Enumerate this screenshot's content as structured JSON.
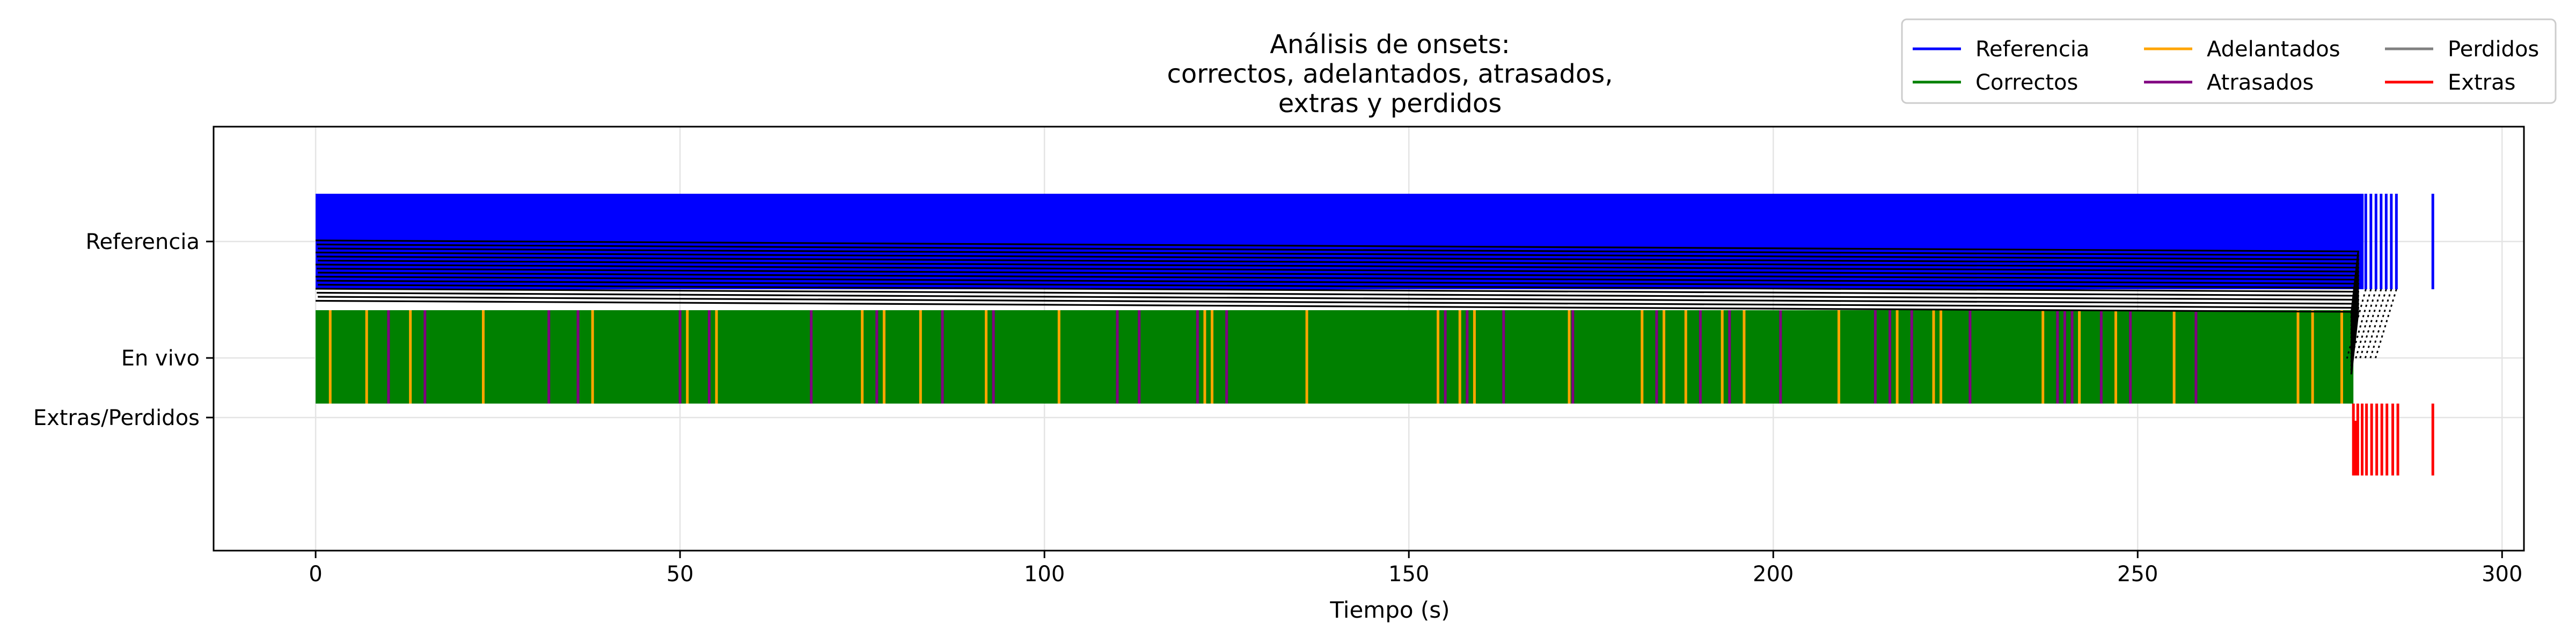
{
  "chart_data": {
    "type": "event-raster",
    "title_lines": [
      "Análisis de onsets:",
      "correctos, adelantados, atrasados,",
      "extras y perdidos"
    ],
    "xlabel": "Tiempo (s)",
    "ylabel": "",
    "xlim": [
      -14,
      303
    ],
    "x_ticks": [
      0,
      50,
      100,
      150,
      200,
      250,
      300
    ],
    "y_tick_labels": [
      "Referencia",
      "En vivo",
      "Extras/Perdidos"
    ],
    "grid": true,
    "legend": {
      "placement": "top-right",
      "columns": 3,
      "entries": [
        {
          "label": "Referencia",
          "color": "#0000ff"
        },
        {
          "label": "Correctos",
          "color": "#008000"
        },
        {
          "label": "Adelantados",
          "color": "#ffa500"
        },
        {
          "label": "Atrasados",
          "color": "#800080"
        },
        {
          "label": "Perdidos",
          "color": "#808080"
        },
        {
          "label": "Extras",
          "color": "#ff0000"
        }
      ]
    },
    "reference_span": [
      0,
      281
    ],
    "reference_tail_onsets": [
      281.3,
      282.0,
      282.7,
      283.4,
      284.1,
      284.8,
      285.5,
      290.5
    ],
    "live_span": [
      0,
      279.6
    ],
    "early_onsets": [
      2,
      7,
      13,
      23,
      38,
      51,
      55,
      75,
      78,
      83,
      92,
      102,
      122,
      123,
      136,
      154,
      157,
      159,
      172,
      182,
      185,
      188,
      193,
      196,
      209,
      217,
      222,
      223,
      237,
      242,
      247,
      255,
      272,
      274,
      278
    ],
    "late_onsets": [
      10,
      15,
      32,
      36,
      50,
      54,
      68,
      77,
      86,
      93,
      110,
      113,
      121,
      125,
      155,
      158,
      163,
      172.5,
      184,
      190,
      194,
      201,
      214,
      216,
      219,
      227,
      239,
      240,
      241,
      245,
      249,
      258
    ],
    "extra_onsets": [
      279.6,
      280.2,
      280.8,
      281.4,
      282.1,
      282.8,
      283.5,
      284.2,
      285.0,
      285.7,
      290.5
    ],
    "missed_onsets": [],
    "colors": {
      "reference": "#0000ff",
      "correct": "#008000",
      "early": "#ffa500",
      "late": "#800080",
      "missed": "#808080",
      "extra": "#ff0000",
      "match_line": "#000000"
    }
  }
}
